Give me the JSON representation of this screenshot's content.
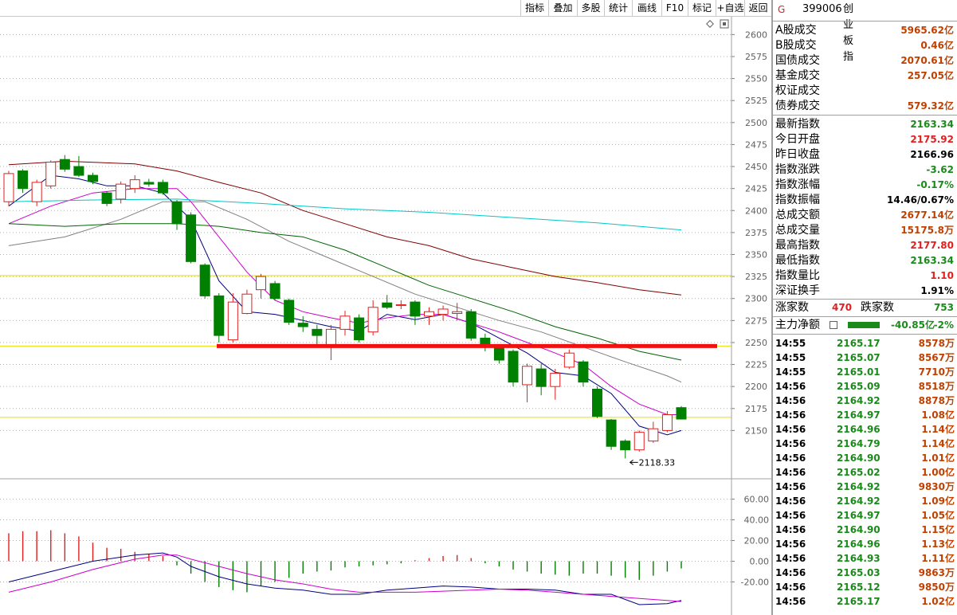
{
  "toolbar": {
    "buttons": [
      "指标",
      "叠加",
      "多股",
      "统计",
      "画线",
      "F10",
      "标记",
      "+自选",
      "返回"
    ]
  },
  "chart_data": {
    "type": "candlestick",
    "price_axis": {
      "ticks": [
        2600,
        2575,
        2550,
        2525,
        2500,
        2475,
        2450,
        2425,
        2400,
        2375,
        2350,
        2325,
        2300,
        2275,
        2250,
        2225,
        2200,
        2175,
        2150
      ],
      "range": [
        2106,
        2613
      ]
    },
    "osc_axis": {
      "ticks": [
        "60.00",
        "40.00",
        "20.00",
        "0.00",
        "-20.00"
      ],
      "range": [
        -52,
        72
      ]
    },
    "candles": [
      {
        "o": 2410,
        "c": 2442,
        "h": 2445,
        "l": 2405
      },
      {
        "o": 2445,
        "c": 2425,
        "h": 2447,
        "l": 2420
      },
      {
        "o": 2410,
        "c": 2432,
        "h": 2435,
        "l": 2405
      },
      {
        "o": 2428,
        "c": 2455,
        "h": 2457,
        "l": 2425
      },
      {
        "o": 2458,
        "c": 2447,
        "h": 2463,
        "l": 2444
      },
      {
        "o": 2450,
        "c": 2440,
        "h": 2462,
        "l": 2438
      },
      {
        "o": 2440,
        "c": 2433,
        "h": 2443,
        "l": 2430
      },
      {
        "o": 2420,
        "c": 2408,
        "h": 2422,
        "l": 2405
      },
      {
        "o": 2413,
        "c": 2430,
        "h": 2433,
        "l": 2408
      },
      {
        "o": 2425,
        "c": 2435,
        "h": 2440,
        "l": 2420
      },
      {
        "o": 2432,
        "c": 2430,
        "h": 2436,
        "l": 2427
      },
      {
        "o": 2432,
        "c": 2420,
        "h": 2435,
        "l": 2418
      },
      {
        "o": 2410,
        "c": 2385,
        "h": 2412,
        "l": 2378
      },
      {
        "o": 2395,
        "c": 2342,
        "h": 2398,
        "l": 2340
      },
      {
        "o": 2338,
        "c": 2303,
        "h": 2340,
        "l": 2300
      },
      {
        "o": 2303,
        "c": 2258,
        "h": 2306,
        "l": 2250
      },
      {
        "o": 2253,
        "c": 2296,
        "h": 2306,
        "l": 2250
      },
      {
        "o": 2283,
        "c": 2305,
        "h": 2310,
        "l": 2282
      },
      {
        "o": 2310,
        "c": 2325,
        "h": 2328,
        "l": 2300
      },
      {
        "o": 2317,
        "c": 2300,
        "h": 2320,
        "l": 2298
      },
      {
        "o": 2298,
        "c": 2273,
        "h": 2300,
        "l": 2270
      },
      {
        "o": 2272,
        "c": 2268,
        "h": 2280,
        "l": 2262
      },
      {
        "o": 2265,
        "c": 2258,
        "h": 2270,
        "l": 2245
      },
      {
        "o": 2245,
        "c": 2265,
        "h": 2270,
        "l": 2230
      },
      {
        "o": 2265,
        "c": 2280,
        "h": 2286,
        "l": 2258
      },
      {
        "o": 2278,
        "c": 2253,
        "h": 2282,
        "l": 2250
      },
      {
        "o": 2262,
        "c": 2290,
        "h": 2298,
        "l": 2258
      },
      {
        "o": 2295,
        "c": 2290,
        "h": 2304,
        "l": 2288
      },
      {
        "o": 2292,
        "c": 2293,
        "h": 2298,
        "l": 2288
      },
      {
        "o": 2296,
        "c": 2280,
        "h": 2298,
        "l": 2270
      },
      {
        "o": 2280,
        "c": 2285,
        "h": 2290,
        "l": 2270
      },
      {
        "o": 2282,
        "c": 2288,
        "h": 2292,
        "l": 2275
      },
      {
        "o": 2283,
        "c": 2285,
        "h": 2295,
        "l": 2275
      },
      {
        "o": 2285,
        "c": 2255,
        "h": 2288,
        "l": 2252
      },
      {
        "o": 2255,
        "c": 2248,
        "h": 2260,
        "l": 2240
      },
      {
        "o": 2245,
        "c": 2230,
        "h": 2248,
        "l": 2226
      },
      {
        "o": 2240,
        "c": 2205,
        "h": 2242,
        "l": 2200
      },
      {
        "o": 2202,
        "c": 2223,
        "h": 2226,
        "l": 2182
      },
      {
        "o": 2220,
        "c": 2200,
        "h": 2226,
        "l": 2190
      },
      {
        "o": 2200,
        "c": 2215,
        "h": 2220,
        "l": 2185
      },
      {
        "o": 2222,
        "c": 2238,
        "h": 2242,
        "l": 2220
      },
      {
        "o": 2228,
        "c": 2205,
        "h": 2230,
        "l": 2200
      },
      {
        "o": 2197,
        "c": 2166,
        "h": 2200,
        "l": 2164
      },
      {
        "o": 2162,
        "c": 2132,
        "h": 2163,
        "l": 2128
      },
      {
        "o": 2138,
        "c": 2128,
        "h": 2140,
        "l": 2118.33
      },
      {
        "o": 2128,
        "c": 2148,
        "h": 2150,
        "l": 2126
      },
      {
        "o": 2138,
        "c": 2152,
        "h": 2160,
        "l": 2136
      },
      {
        "o": 2150,
        "c": 2168,
        "h": 2172,
        "l": 2148
      },
      {
        "o": 2176,
        "c": 2163,
        "h": 2177.8,
        "l": 2163
      }
    ],
    "low_marker": "2118.33",
    "support_level": 2246,
    "hlines": [
      2326,
      2246,
      2165
    ],
    "ma_lines": [
      {
        "color": "#000080",
        "values": [
          [
            0,
            2405
          ],
          [
            3,
            2440
          ],
          [
            5,
            2436
          ],
          [
            7,
            2428
          ],
          [
            9,
            2428
          ],
          [
            11,
            2420
          ],
          [
            13,
            2390
          ],
          [
            15,
            2320
          ],
          [
            17,
            2285
          ],
          [
            19,
            2282
          ],
          [
            21,
            2275
          ],
          [
            23,
            2268
          ],
          [
            25,
            2263
          ],
          [
            27,
            2282
          ],
          [
            29,
            2276
          ],
          [
            31,
            2282
          ],
          [
            33,
            2272
          ],
          [
            35,
            2255
          ],
          [
            37,
            2238
          ],
          [
            39,
            2216
          ],
          [
            41,
            2212
          ],
          [
            43,
            2192
          ],
          [
            45,
            2155
          ],
          [
            47,
            2145
          ],
          [
            48,
            2150
          ]
        ]
      },
      {
        "color": "#cc00cc",
        "values": [
          [
            0,
            2385
          ],
          [
            3,
            2405
          ],
          [
            6,
            2420
          ],
          [
            9,
            2425
          ],
          [
            12,
            2425
          ],
          [
            13,
            2410
          ],
          [
            15,
            2370
          ],
          [
            17,
            2330
          ],
          [
            19,
            2298
          ],
          [
            21,
            2285
          ],
          [
            23,
            2278
          ],
          [
            25,
            2272
          ],
          [
            27,
            2278
          ],
          [
            29,
            2282
          ],
          [
            31,
            2282
          ],
          [
            33,
            2272
          ],
          [
            35,
            2262
          ],
          [
            37,
            2250
          ],
          [
            39,
            2238
          ],
          [
            41,
            2225
          ],
          [
            43,
            2200
          ],
          [
            45,
            2180
          ],
          [
            47,
            2168
          ],
          [
            48,
            2168
          ]
        ]
      },
      {
        "color": "#808080",
        "values": [
          [
            0,
            2360
          ],
          [
            4,
            2370
          ],
          [
            8,
            2390
          ],
          [
            11,
            2410
          ],
          [
            14,
            2410
          ],
          [
            17,
            2390
          ],
          [
            20,
            2365
          ],
          [
            23,
            2345
          ],
          [
            26,
            2325
          ],
          [
            29,
            2305
          ],
          [
            32,
            2290
          ],
          [
            35,
            2275
          ],
          [
            38,
            2262
          ],
          [
            41,
            2245
          ],
          [
            44,
            2228
          ],
          [
            47,
            2212
          ],
          [
            48,
            2205
          ]
        ]
      },
      {
        "color": "#006400",
        "values": [
          [
            0,
            2385
          ],
          [
            4,
            2382
          ],
          [
            8,
            2385
          ],
          [
            12,
            2385
          ],
          [
            15,
            2382
          ],
          [
            18,
            2375
          ],
          [
            21,
            2370
          ],
          [
            24,
            2355
          ],
          [
            27,
            2335
          ],
          [
            30,
            2315
          ],
          [
            33,
            2300
          ],
          [
            36,
            2285
          ],
          [
            39,
            2268
          ],
          [
            42,
            2255
          ],
          [
            45,
            2240
          ],
          [
            48,
            2230
          ]
        ]
      },
      {
        "color": "#800000",
        "values": [
          [
            0,
            2452
          ],
          [
            4,
            2456
          ],
          [
            9,
            2453
          ],
          [
            12,
            2445
          ],
          [
            15,
            2432
          ],
          [
            18,
            2420
          ],
          [
            21,
            2400
          ],
          [
            24,
            2385
          ],
          [
            27,
            2370
          ],
          [
            30,
            2360
          ],
          [
            33,
            2345
          ],
          [
            36,
            2335
          ],
          [
            39,
            2325
          ],
          [
            42,
            2318
          ],
          [
            45,
            2310
          ],
          [
            48,
            2304
          ]
        ]
      },
      {
        "color": "#00c8c8",
        "values": [
          [
            0,
            2410
          ],
          [
            6,
            2412
          ],
          [
            12,
            2413
          ],
          [
            18,
            2408
          ],
          [
            24,
            2402
          ],
          [
            30,
            2398
          ],
          [
            36,
            2392
          ],
          [
            42,
            2386
          ],
          [
            48,
            2378
          ]
        ]
      }
    ],
    "macd_bars": [
      27,
      29,
      29,
      30,
      27,
      24,
      18,
      13,
      12,
      9,
      7,
      5,
      -4,
      -12,
      -20,
      -25,
      -28,
      -30,
      -24,
      -20,
      -16,
      -12,
      -10,
      -9,
      -6,
      -5,
      -4,
      -3,
      -2,
      1,
      3,
      5,
      6,
      3,
      -2,
      -5,
      -8,
      -10,
      -12,
      -13,
      -14,
      -12,
      -12,
      -14,
      -16,
      -18,
      -14,
      -10,
      -7
    ],
    "dif": [
      [
        0,
        -20
      ],
      [
        3,
        -10
      ],
      [
        6,
        0
      ],
      [
        9,
        6
      ],
      [
        11,
        8
      ],
      [
        12,
        4
      ],
      [
        13,
        -5
      ],
      [
        15,
        -15
      ],
      [
        17,
        -22
      ],
      [
        19,
        -26
      ],
      [
        21,
        -28
      ],
      [
        23,
        -32
      ],
      [
        25,
        -32
      ],
      [
        27,
        -28
      ],
      [
        29,
        -26
      ],
      [
        31,
        -24
      ],
      [
        33,
        -25
      ],
      [
        35,
        -27
      ],
      [
        37,
        -27
      ],
      [
        39,
        -28
      ],
      [
        41,
        -32
      ],
      [
        43,
        -32
      ],
      [
        45,
        -42
      ],
      [
        47,
        -41
      ],
      [
        48,
        -38
      ]
    ],
    "dea": [
      [
        0,
        -30
      ],
      [
        3,
        -20
      ],
      [
        6,
        -8
      ],
      [
        9,
        2
      ],
      [
        11,
        6
      ],
      [
        12,
        6
      ],
      [
        13,
        2
      ],
      [
        15,
        -5
      ],
      [
        17,
        -12
      ],
      [
        19,
        -18
      ],
      [
        21,
        -22
      ],
      [
        23,
        -27
      ],
      [
        25,
        -30
      ],
      [
        27,
        -30
      ],
      [
        29,
        -30
      ],
      [
        31,
        -29
      ],
      [
        33,
        -28
      ],
      [
        35,
        -27
      ],
      [
        37,
        -28
      ],
      [
        39,
        -30
      ],
      [
        41,
        -32
      ],
      [
        43,
        -34
      ],
      [
        45,
        -36
      ],
      [
        47,
        -38
      ],
      [
        48,
        -39
      ]
    ]
  },
  "panel": {
    "title": {
      "code": "399006",
      "name": "创业板指"
    },
    "volumes": [
      {
        "label": "A股成交",
        "value": "5965.62亿"
      },
      {
        "label": "B股成交",
        "value": "0.46亿"
      },
      {
        "label": "国债成交",
        "value": "2070.61亿"
      },
      {
        "label": "基金成交",
        "value": "257.05亿"
      },
      {
        "label": "权证成交",
        "value": ""
      },
      {
        "label": "债券成交",
        "value": "579.32亿"
      }
    ],
    "stats": [
      {
        "label": "最新指数",
        "value": "2163.34",
        "color": "grn"
      },
      {
        "label": "今日开盘",
        "value": "2175.92",
        "color": "red"
      },
      {
        "label": "昨日收盘",
        "value": "2166.96",
        "color": "blk"
      },
      {
        "label": "指数涨跌",
        "value": "-3.62",
        "color": "grn"
      },
      {
        "label": "指数涨幅",
        "value": "-0.17%",
        "color": "grn"
      },
      {
        "label": "指数振幅",
        "value": "14.46/0.67%",
        "color": "blk"
      },
      {
        "label": "总成交额",
        "value": "2677.14亿",
        "color": "brn"
      },
      {
        "label": "总成交量",
        "value": "15175.8万",
        "color": "brn"
      },
      {
        "label": "最高指数",
        "value": "2177.80",
        "color": "red"
      },
      {
        "label": "最低指数",
        "value": "2163.34",
        "color": "grn"
      },
      {
        "label": "指数量比",
        "value": "1.10",
        "color": "red"
      },
      {
        "label": "深证换手",
        "value": "1.91%",
        "color": "blk"
      }
    ],
    "updown": {
      "up_label": "涨家数",
      "up_value": "470",
      "down_label": "跌家数",
      "down_value": "753"
    },
    "netflow": {
      "label": "主力净额",
      "value": "-40.85亿",
      "pct": "-2%"
    },
    "ticks": [
      {
        "t": "14:55",
        "p": "2165.17",
        "v": "8578万"
      },
      {
        "t": "14:55",
        "p": "2165.07",
        "v": "8567万"
      },
      {
        "t": "14:55",
        "p": "2165.01",
        "v": "7710万"
      },
      {
        "t": "14:56",
        "p": "2165.09",
        "v": "8518万"
      },
      {
        "t": "14:56",
        "p": "2164.92",
        "v": "8878万"
      },
      {
        "t": "14:56",
        "p": "2164.97",
        "v": "1.08亿"
      },
      {
        "t": "14:56",
        "p": "2164.96",
        "v": "1.14亿"
      },
      {
        "t": "14:56",
        "p": "2164.79",
        "v": "1.14亿"
      },
      {
        "t": "14:56",
        "p": "2164.90",
        "v": "1.01亿"
      },
      {
        "t": "14:56",
        "p": "2165.02",
        "v": "1.00亿"
      },
      {
        "t": "14:56",
        "p": "2164.92",
        "v": "9830万"
      },
      {
        "t": "14:56",
        "p": "2164.92",
        "v": "1.09亿"
      },
      {
        "t": "14:56",
        "p": "2164.97",
        "v": "1.05亿"
      },
      {
        "t": "14:56",
        "p": "2164.90",
        "v": "1.15亿"
      },
      {
        "t": "14:56",
        "p": "2164.96",
        "v": "1.13亿"
      },
      {
        "t": "14:56",
        "p": "2164.93",
        "v": "1.11亿"
      },
      {
        "t": "14:56",
        "p": "2165.03",
        "v": "9863万"
      },
      {
        "t": "14:56",
        "p": "2165.12",
        "v": "9850万"
      },
      {
        "t": "14:56",
        "p": "2165.17",
        "v": "1.02亿"
      }
    ]
  }
}
